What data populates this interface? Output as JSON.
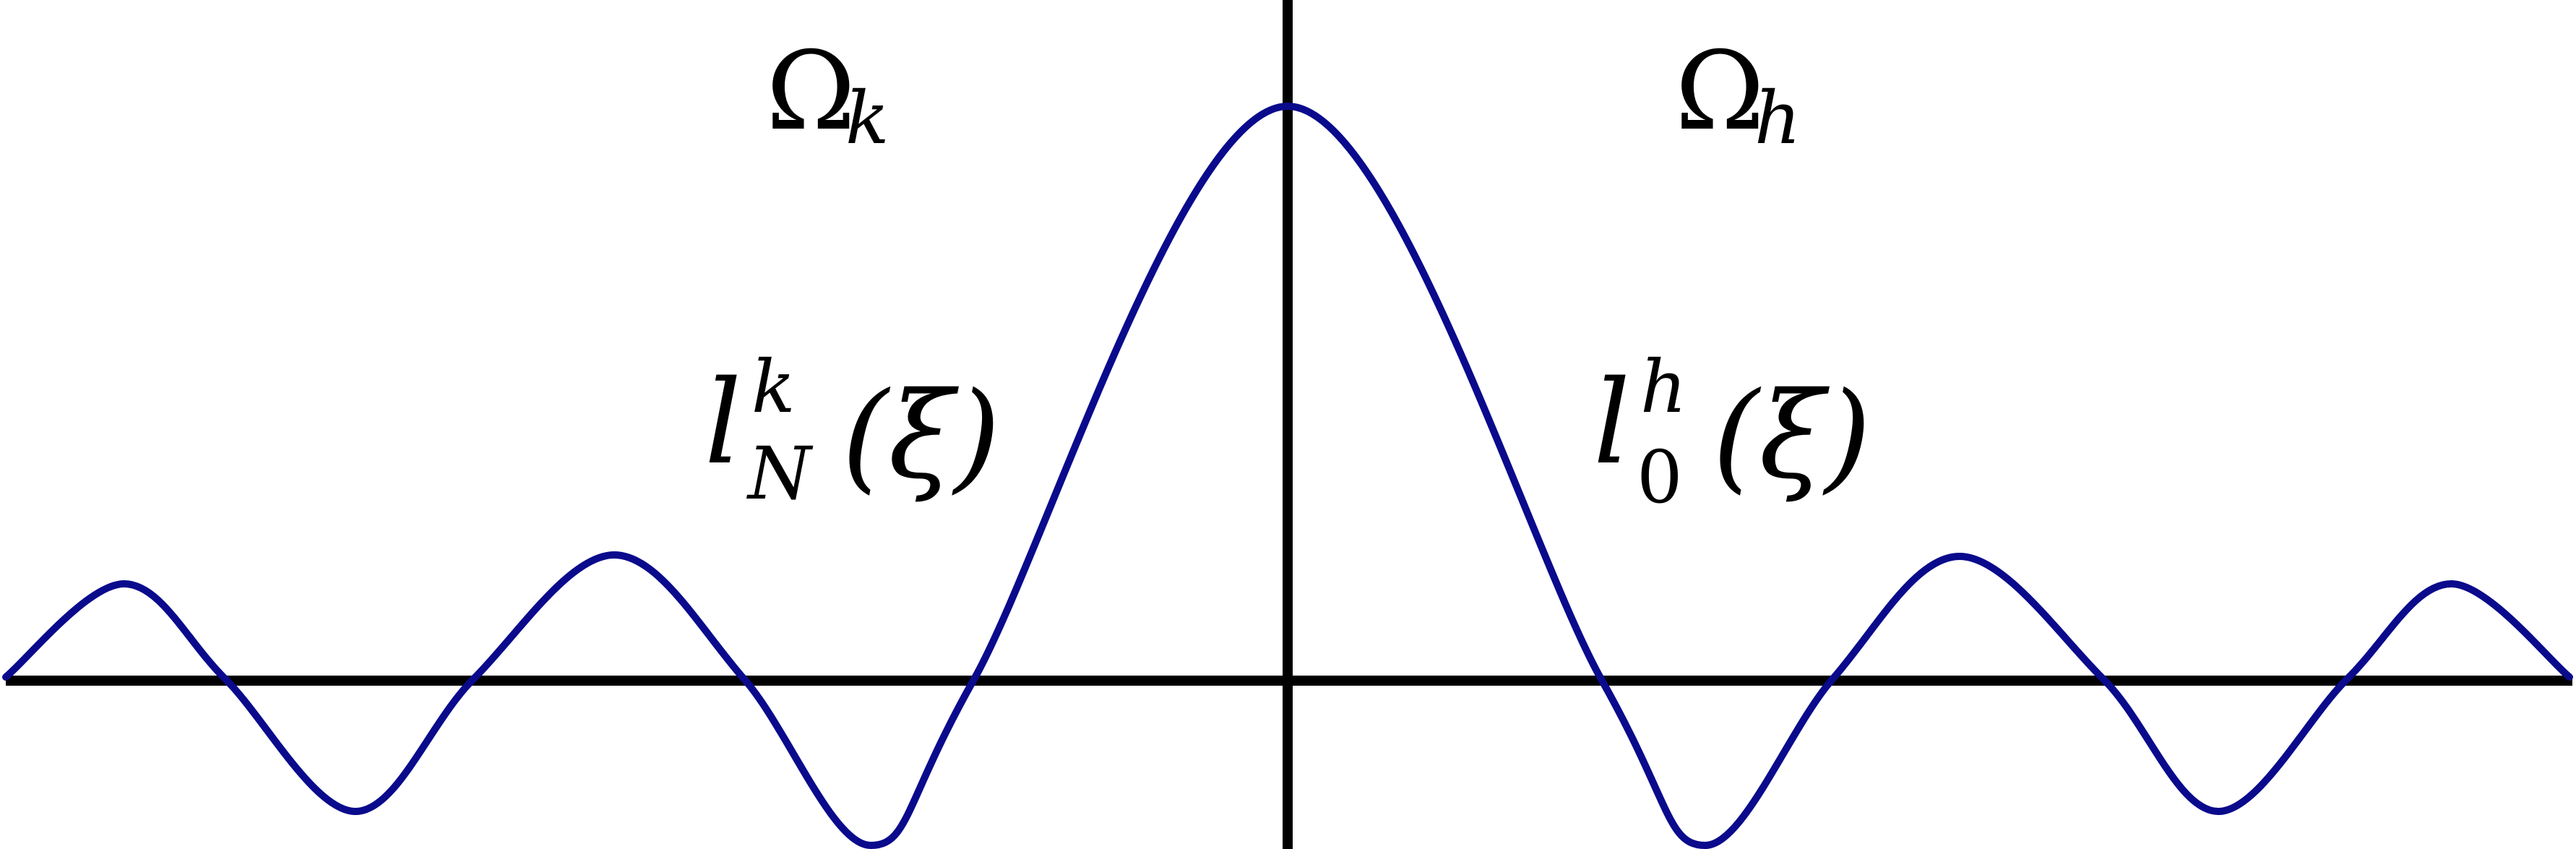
{
  "labels": {
    "omega": "Ω",
    "omega_left_sub": "k",
    "omega_right_sub": "h",
    "l": "l",
    "left_sup": "k",
    "left_sub": "N",
    "right_sup": "h",
    "right_sub": "0",
    "xi_paren": "(ξ)"
  },
  "colors": {
    "curve": "#0a0a8c",
    "axes": "#000000"
  }
}
